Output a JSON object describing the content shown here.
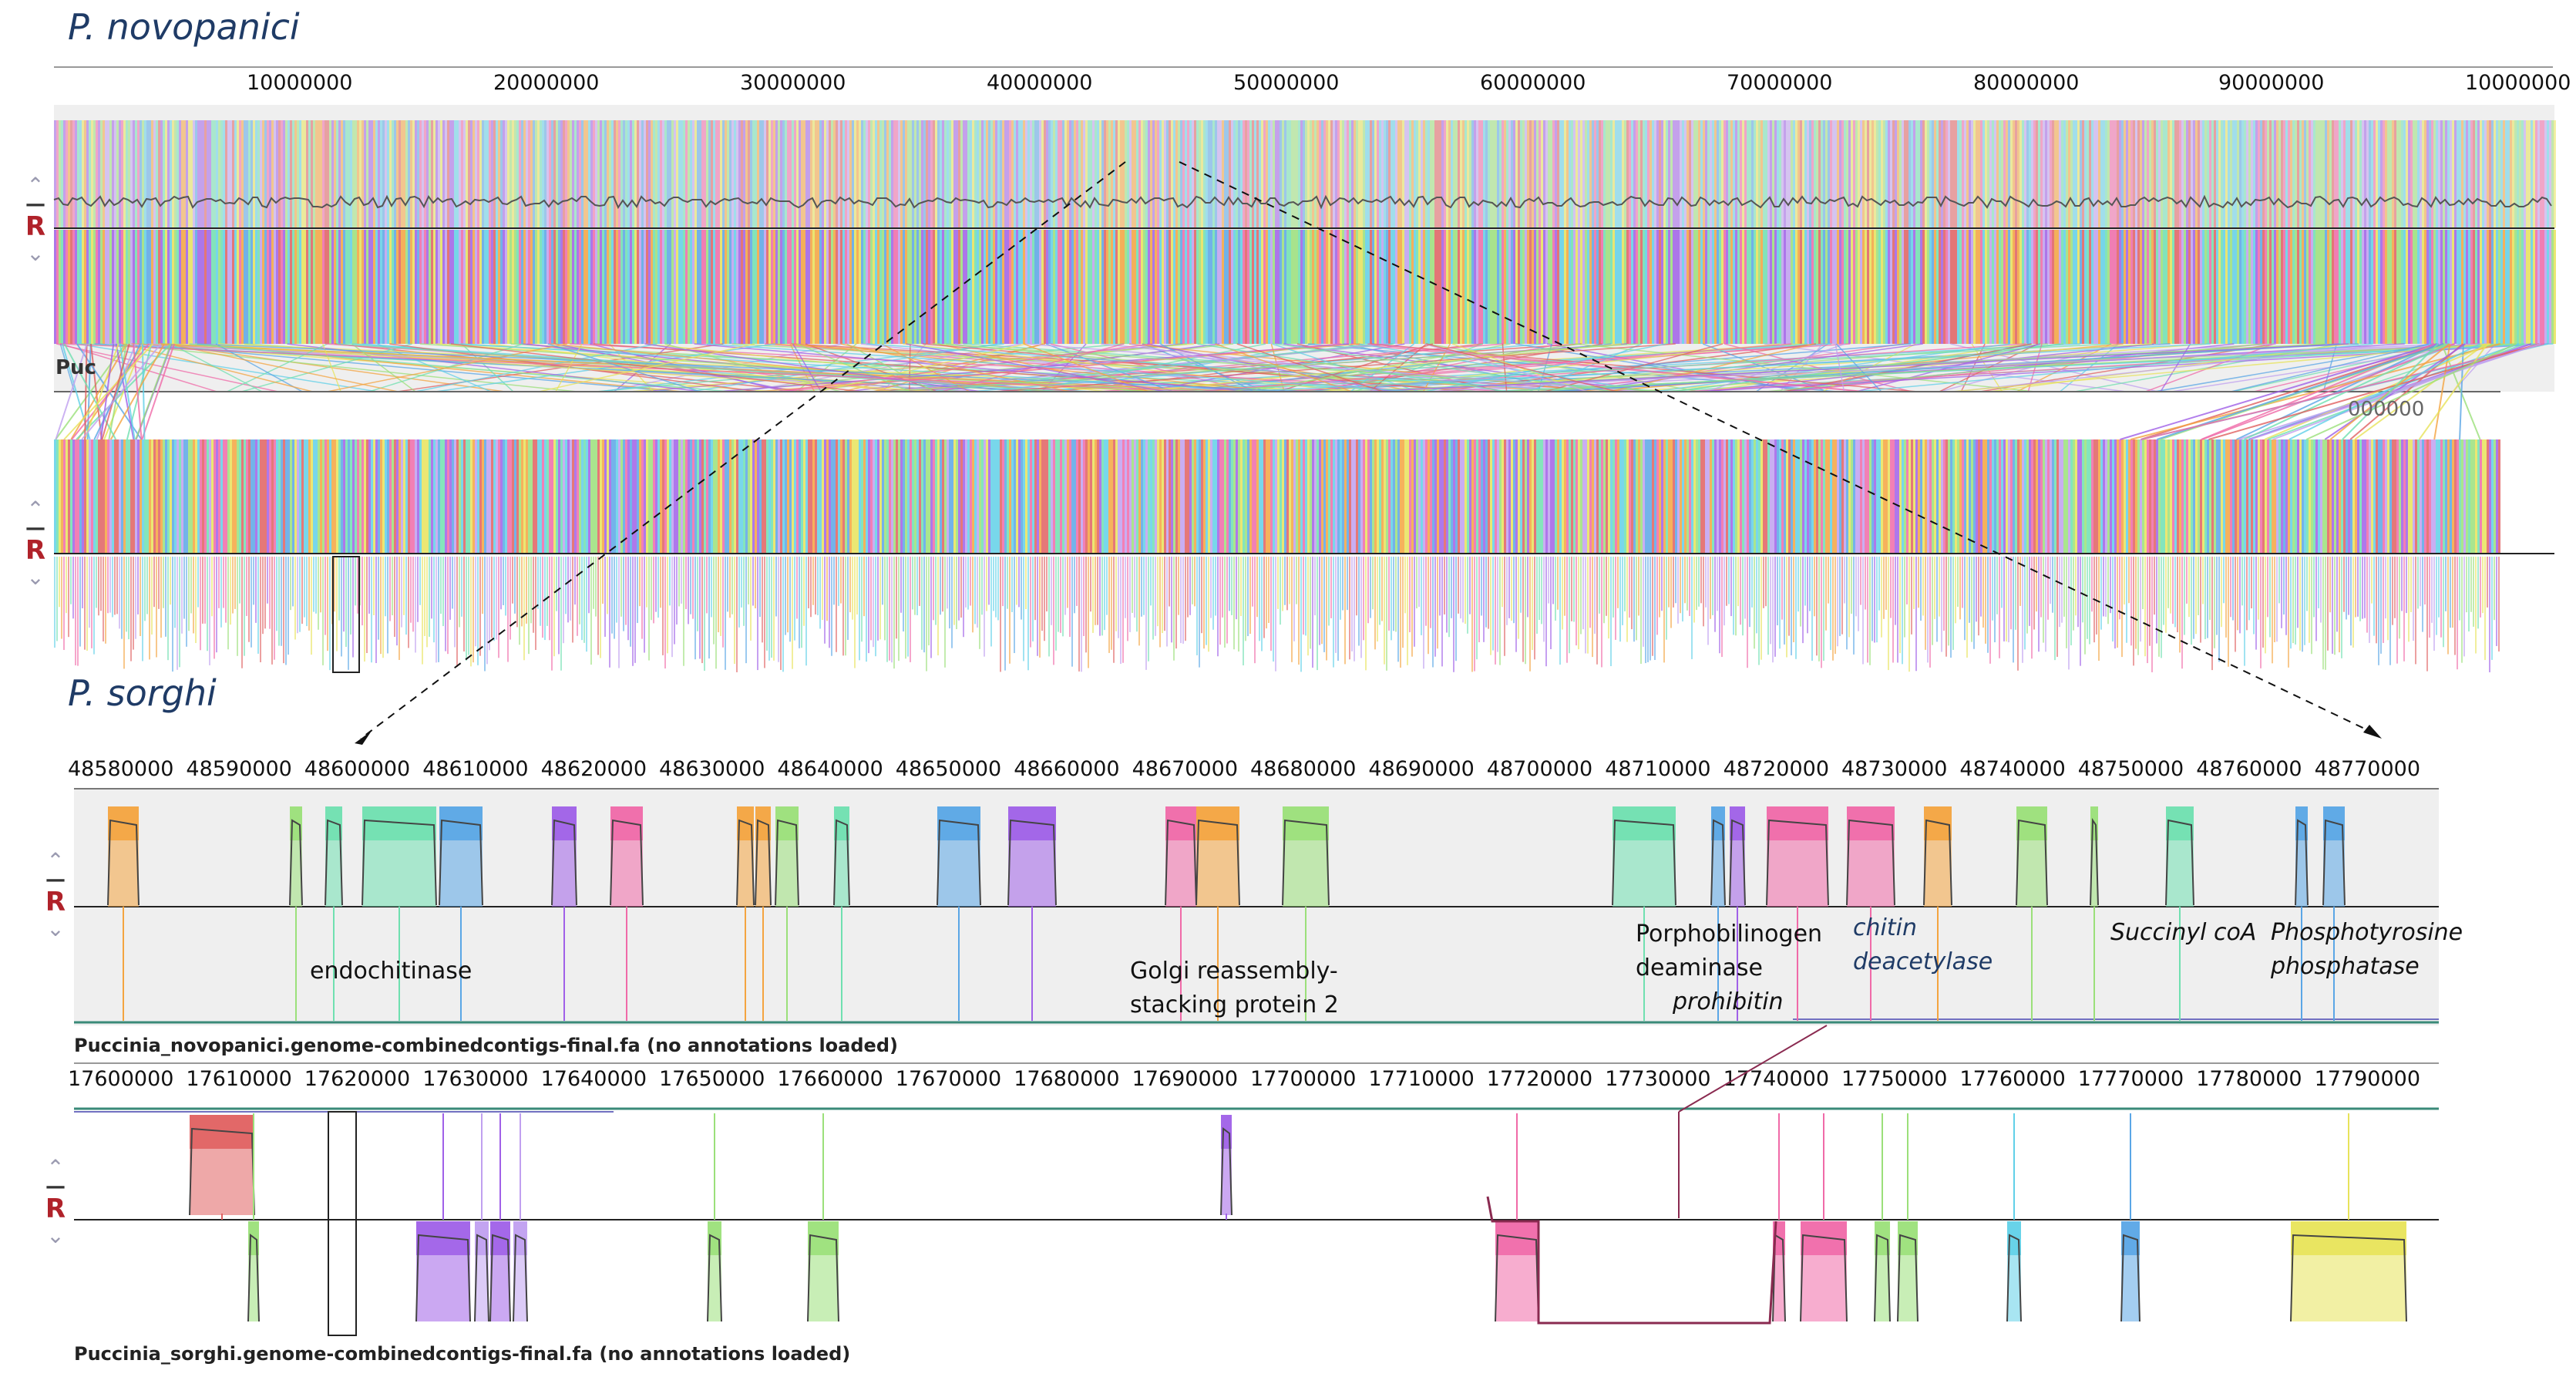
{
  "species": {
    "top": "P. novopanici",
    "bottom": "P. sorghi"
  },
  "overview": {
    "top_ticks": [
      "10000000",
      "20000000",
      "30000000",
      "40000000",
      "50000000",
      "60000000",
      "70000000",
      "80000000",
      "90000000",
      "10000000"
    ],
    "top_partial_label": "Puc",
    "bottom_partial_tick": "000000"
  },
  "zoom_top": {
    "ticks": [
      "48580000",
      "48590000",
      "48600000",
      "48610000",
      "48620000",
      "48630000",
      "48640000",
      "48650000",
      "48660000",
      "48670000",
      "48680000",
      "48690000",
      "48700000",
      "48710000",
      "48720000",
      "48730000",
      "48740000",
      "48750000",
      "48760000",
      "48770000"
    ],
    "file_label": "Puccinia_novopanici.genome-combinedcontigs-final.fa (no annotations loaded)",
    "genes": [
      {
        "id": "endochitinase",
        "text": "endochitinase"
      },
      {
        "id": "golgi1",
        "text": "Golgi reassembly-"
      },
      {
        "id": "golgi2",
        "text": "stacking protein 2"
      },
      {
        "id": "porpho1",
        "text": "Porphobilinogen"
      },
      {
        "id": "porpho2",
        "text": "deaminase"
      },
      {
        "id": "prohibitin",
        "text": "prohibitin"
      },
      {
        "id": "chitin1",
        "text": "chitin"
      },
      {
        "id": "chitin2",
        "text": "deacetylase"
      },
      {
        "id": "succinyl",
        "text": "Succinyl coA"
      },
      {
        "id": "phospho1",
        "text": "Phosphotyrosine"
      },
      {
        "id": "phospho2",
        "text": "phosphatase"
      }
    ]
  },
  "zoom_bottom": {
    "ticks": [
      "17600000",
      "17610000",
      "17620000",
      "17630000",
      "17640000",
      "17650000",
      "17660000",
      "17670000",
      "17680000",
      "17690000",
      "17700000",
      "17710000",
      "17720000",
      "17730000",
      "17740000",
      "17750000",
      "17760000",
      "17770000",
      "17780000",
      "17790000"
    ],
    "file_label": "Puccinia_sorghi.genome-combinedcontigs-final.fa (no annotations loaded)"
  },
  "controls": {
    "up": "⌃",
    "minus": "—",
    "r": "R",
    "down": "⌄"
  },
  "colors": {
    "block_palette": [
      "#f4a440",
      "#9be07a",
      "#6fe0b0",
      "#5aa6e6",
      "#a060e8",
      "#f06aa8",
      "#e8e35a",
      "#60d0e8",
      "#e06060",
      "#c0a0f0"
    ]
  }
}
